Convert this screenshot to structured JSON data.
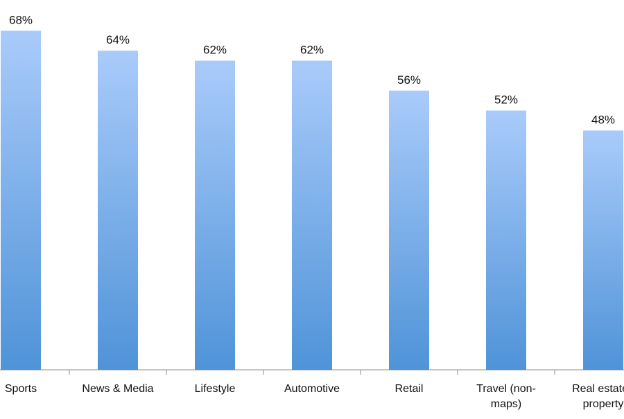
{
  "chart_data": {
    "type": "bar",
    "categories": [
      "Sports",
      "News & Media",
      "Lifestyle",
      "Automotive",
      "Retail",
      "Travel (non-maps)",
      "Real estate / property"
    ],
    "category_label_lines": [
      [
        "Sports"
      ],
      [
        "News & Media"
      ],
      [
        "Lifestyle"
      ],
      [
        "Automotive"
      ],
      [
        "Retail"
      ],
      [
        "Travel (non-",
        "maps)"
      ],
      [
        "Real estate /",
        "property"
      ]
    ],
    "values": [
      68,
      64,
      62,
      62,
      56,
      52,
      48
    ],
    "value_labels": [
      "68%",
      "64%",
      "62%",
      "62%",
      "56%",
      "52%",
      "48%"
    ],
    "ylim": [
      0,
      70
    ],
    "grid": false,
    "colors": {
      "bar_top": "#a9cbfa",
      "bar_bottom": "#4f93d8",
      "axis": "#8d8d8d"
    }
  }
}
